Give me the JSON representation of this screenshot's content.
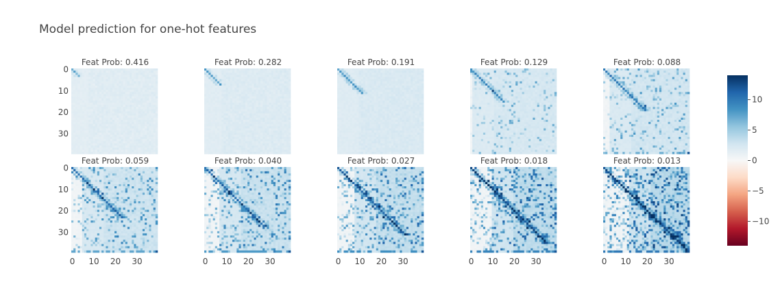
{
  "chart_data": {
    "type": "heatmap",
    "title": "Model prediction for one-hot features",
    "grid_rows": 2,
    "grid_cols": 5,
    "matrix_size": 40,
    "colorscale": "RdBu",
    "zrange": [
      -14,
      14
    ],
    "xticks": [
      0,
      10,
      20,
      30
    ],
    "yticks": [
      0,
      10,
      20,
      30
    ],
    "colorbar_ticks": [
      10,
      5,
      0,
      -5,
      -10
    ],
    "panels": [
      {
        "title": "Feat Prob: 0.416",
        "feat_prob": 0.416
      },
      {
        "title": "Feat Prob: 0.282",
        "feat_prob": 0.282
      },
      {
        "title": "Feat Prob: 0.191",
        "feat_prob": 0.191
      },
      {
        "title": "Feat Prob: 0.129",
        "feat_prob": 0.129
      },
      {
        "title": "Feat Prob: 0.088",
        "feat_prob": 0.088
      },
      {
        "title": "Feat Prob: 0.059",
        "feat_prob": 0.059
      },
      {
        "title": "Feat Prob: 0.040",
        "feat_prob": 0.04
      },
      {
        "title": "Feat Prob: 0.027",
        "feat_prob": 0.027
      },
      {
        "title": "Feat Prob: 0.018",
        "feat_prob": 0.018
      },
      {
        "title": "Feat Prob: 0.013",
        "feat_prob": 0.013
      }
    ]
  }
}
